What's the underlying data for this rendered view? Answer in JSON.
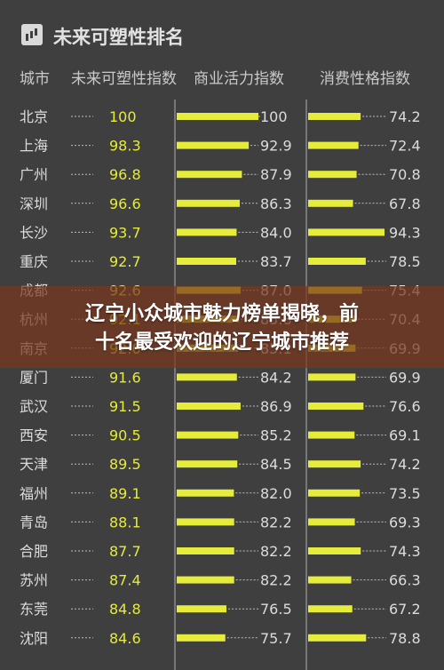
{
  "header": {
    "title": "未来可塑性排名",
    "col_city": "城市",
    "col_index": "未来可塑性指数",
    "col_business": "商业活力指数",
    "col_consume": "消费性格指数"
  },
  "overlay": {
    "line1": "辽宁小众城市魅力榜单揭晓，前",
    "line2": "十名最受欢迎的辽宁城市推荐"
  },
  "colors": {
    "bar": "#e6ec3a",
    "index_text": "#e6ec3a",
    "text": "#dcdcdc",
    "dash": "#bdbdbd"
  },
  "chart_data": {
    "type": "table",
    "title": "未来可塑性排名",
    "columns": [
      "城市",
      "未来可塑性指数",
      "商业活力指数",
      "消费性格指数"
    ],
    "rows": [
      {
        "city": "北京",
        "index": "100",
        "business": "100",
        "consume": "74.2"
      },
      {
        "city": "上海",
        "index": "98.3",
        "business": "92.9",
        "consume": "72.4"
      },
      {
        "city": "广州",
        "index": "96.8",
        "business": "87.9",
        "consume": "70.8"
      },
      {
        "city": "深圳",
        "index": "96.6",
        "business": "86.3",
        "consume": "67.8"
      },
      {
        "city": "长沙",
        "index": "93.7",
        "business": "84.0",
        "consume": "94.3"
      },
      {
        "city": "重庆",
        "index": "92.7",
        "business": "83.7",
        "consume": "78.5"
      },
      {
        "city": "成都",
        "index": "92.6",
        "business": "87.0",
        "consume": "75.4"
      },
      {
        "city": "杭州",
        "index": "92.1",
        "business": "85.8",
        "consume": "70.4"
      },
      {
        "city": "南京",
        "index": "92.0",
        "business": "85.1",
        "consume": "69.9"
      },
      {
        "city": "厦门",
        "index": "91.6",
        "business": "84.2",
        "consume": "69.9"
      },
      {
        "city": "武汉",
        "index": "91.5",
        "business": "86.9",
        "consume": "76.6"
      },
      {
        "city": "西安",
        "index": "90.5",
        "business": "85.2",
        "consume": "69.1"
      },
      {
        "city": "天津",
        "index": "89.5",
        "business": "84.5",
        "consume": "74.2"
      },
      {
        "city": "福州",
        "index": "89.1",
        "business": "82.0",
        "consume": "73.5"
      },
      {
        "city": "青岛",
        "index": "88.1",
        "business": "82.2",
        "consume": "69.3"
      },
      {
        "city": "合肥",
        "index": "87.7",
        "business": "82.2",
        "consume": "74.3"
      },
      {
        "city": "苏州",
        "index": "87.4",
        "business": "82.2",
        "consume": "66.3"
      },
      {
        "city": "东莞",
        "index": "84.8",
        "business": "76.5",
        "consume": "67.2"
      },
      {
        "city": "沈阳",
        "index": "84.6",
        "business": "75.7",
        "consume": "78.8"
      }
    ]
  }
}
